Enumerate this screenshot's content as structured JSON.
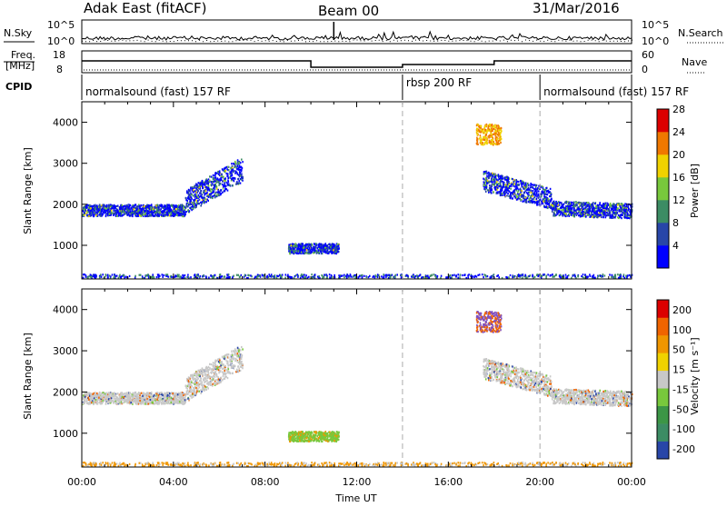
{
  "header": {
    "station": "Adak East (fitACF)",
    "beam": "Beam 00",
    "date": "31/Mar/2016"
  },
  "top_panels": {
    "nsky_label": "N.Sky",
    "nsearch_label": "N.Search",
    "noise_axis_ticks": [
      "10^5",
      "10^0"
    ],
    "freq_label_line1": "Freq.",
    "freq_label_line2": "[MHz]",
    "freq_ticks": [
      "18",
      "8"
    ],
    "nave_label": "Nave",
    "nave_ticks": [
      "60",
      "0"
    ],
    "cpid_label": "CPID",
    "cpid_segments": [
      {
        "label": "normalsound (fast) 157 RF",
        "start_hour": 0,
        "end_hour": 14
      },
      {
        "label": "rbsp 200 RF",
        "start_hour": 14,
        "end_hour": 20
      },
      {
        "label": "normalsound (fast) 157 RF",
        "start_hour": 20,
        "end_hour": 24
      }
    ]
  },
  "chart_data": [
    {
      "type": "heatmap",
      "parameter": "power",
      "ylabel": "Slant Range [km]",
      "xlabel": "",
      "xlim": [
        0,
        24
      ],
      "ylim": [
        180,
        4500
      ],
      "y_ticks": [
        "1000",
        "2000",
        "3000",
        "4000"
      ],
      "colorbar_label": "Power [dB]",
      "colorbar_ticks": [
        "4",
        "8",
        "12",
        "16",
        "20",
        "24",
        "28"
      ],
      "colorbar_colors": [
        "#0000ff",
        "#2846a8",
        "#3c8c64",
        "#78c83c",
        "#f0d200",
        "#f07800",
        "#dc0000"
      ],
      "scatter_regions": [
        {
          "t_start": 0.0,
          "t_end": 4.5,
          "r_center": 1850,
          "r_half_width": 140
        },
        {
          "t_start": 4.5,
          "t_end": 7.0,
          "r_center": 2450,
          "r_half_width": 300
        },
        {
          "t_start": 9.0,
          "t_end": 11.2,
          "r_center": 920,
          "r_half_width": 120
        },
        {
          "t_start": 17.2,
          "t_end": 18.3,
          "r_center": 3700,
          "r_half_width": 250
        },
        {
          "t_start": 17.5,
          "t_end": 20.5,
          "r_center": 2350,
          "r_half_width": 250
        },
        {
          "t_start": 20.5,
          "t_end": 24.0,
          "r_center": 1900,
          "r_half_width": 180
        }
      ]
    },
    {
      "type": "heatmap",
      "parameter": "velocity",
      "ylabel": "Slant Range [km]",
      "xlabel": "Time UT",
      "xlim": [
        0,
        24
      ],
      "ylim": [
        180,
        4500
      ],
      "x_ticks": [
        "00:00",
        "04:00",
        "08:00",
        "12:00",
        "16:00",
        "20:00",
        "00:00"
      ],
      "y_ticks": [
        "1000",
        "2000",
        "3000",
        "4000"
      ],
      "colorbar_label": "Velocity [m s⁻¹]",
      "colorbar_ticks": [
        "200",
        "100",
        "50",
        "15",
        "-15",
        "-50",
        "-100",
        "-200"
      ],
      "colorbar_colors": [
        "#2846a8",
        "#3c8c64",
        "#3c9646",
        "#78c83c",
        "#c8c8c8",
        "#f0d200",
        "#f09600",
        "#f06400",
        "#dc0000"
      ],
      "dashed_markers_hours": [
        14,
        20
      ]
    }
  ]
}
